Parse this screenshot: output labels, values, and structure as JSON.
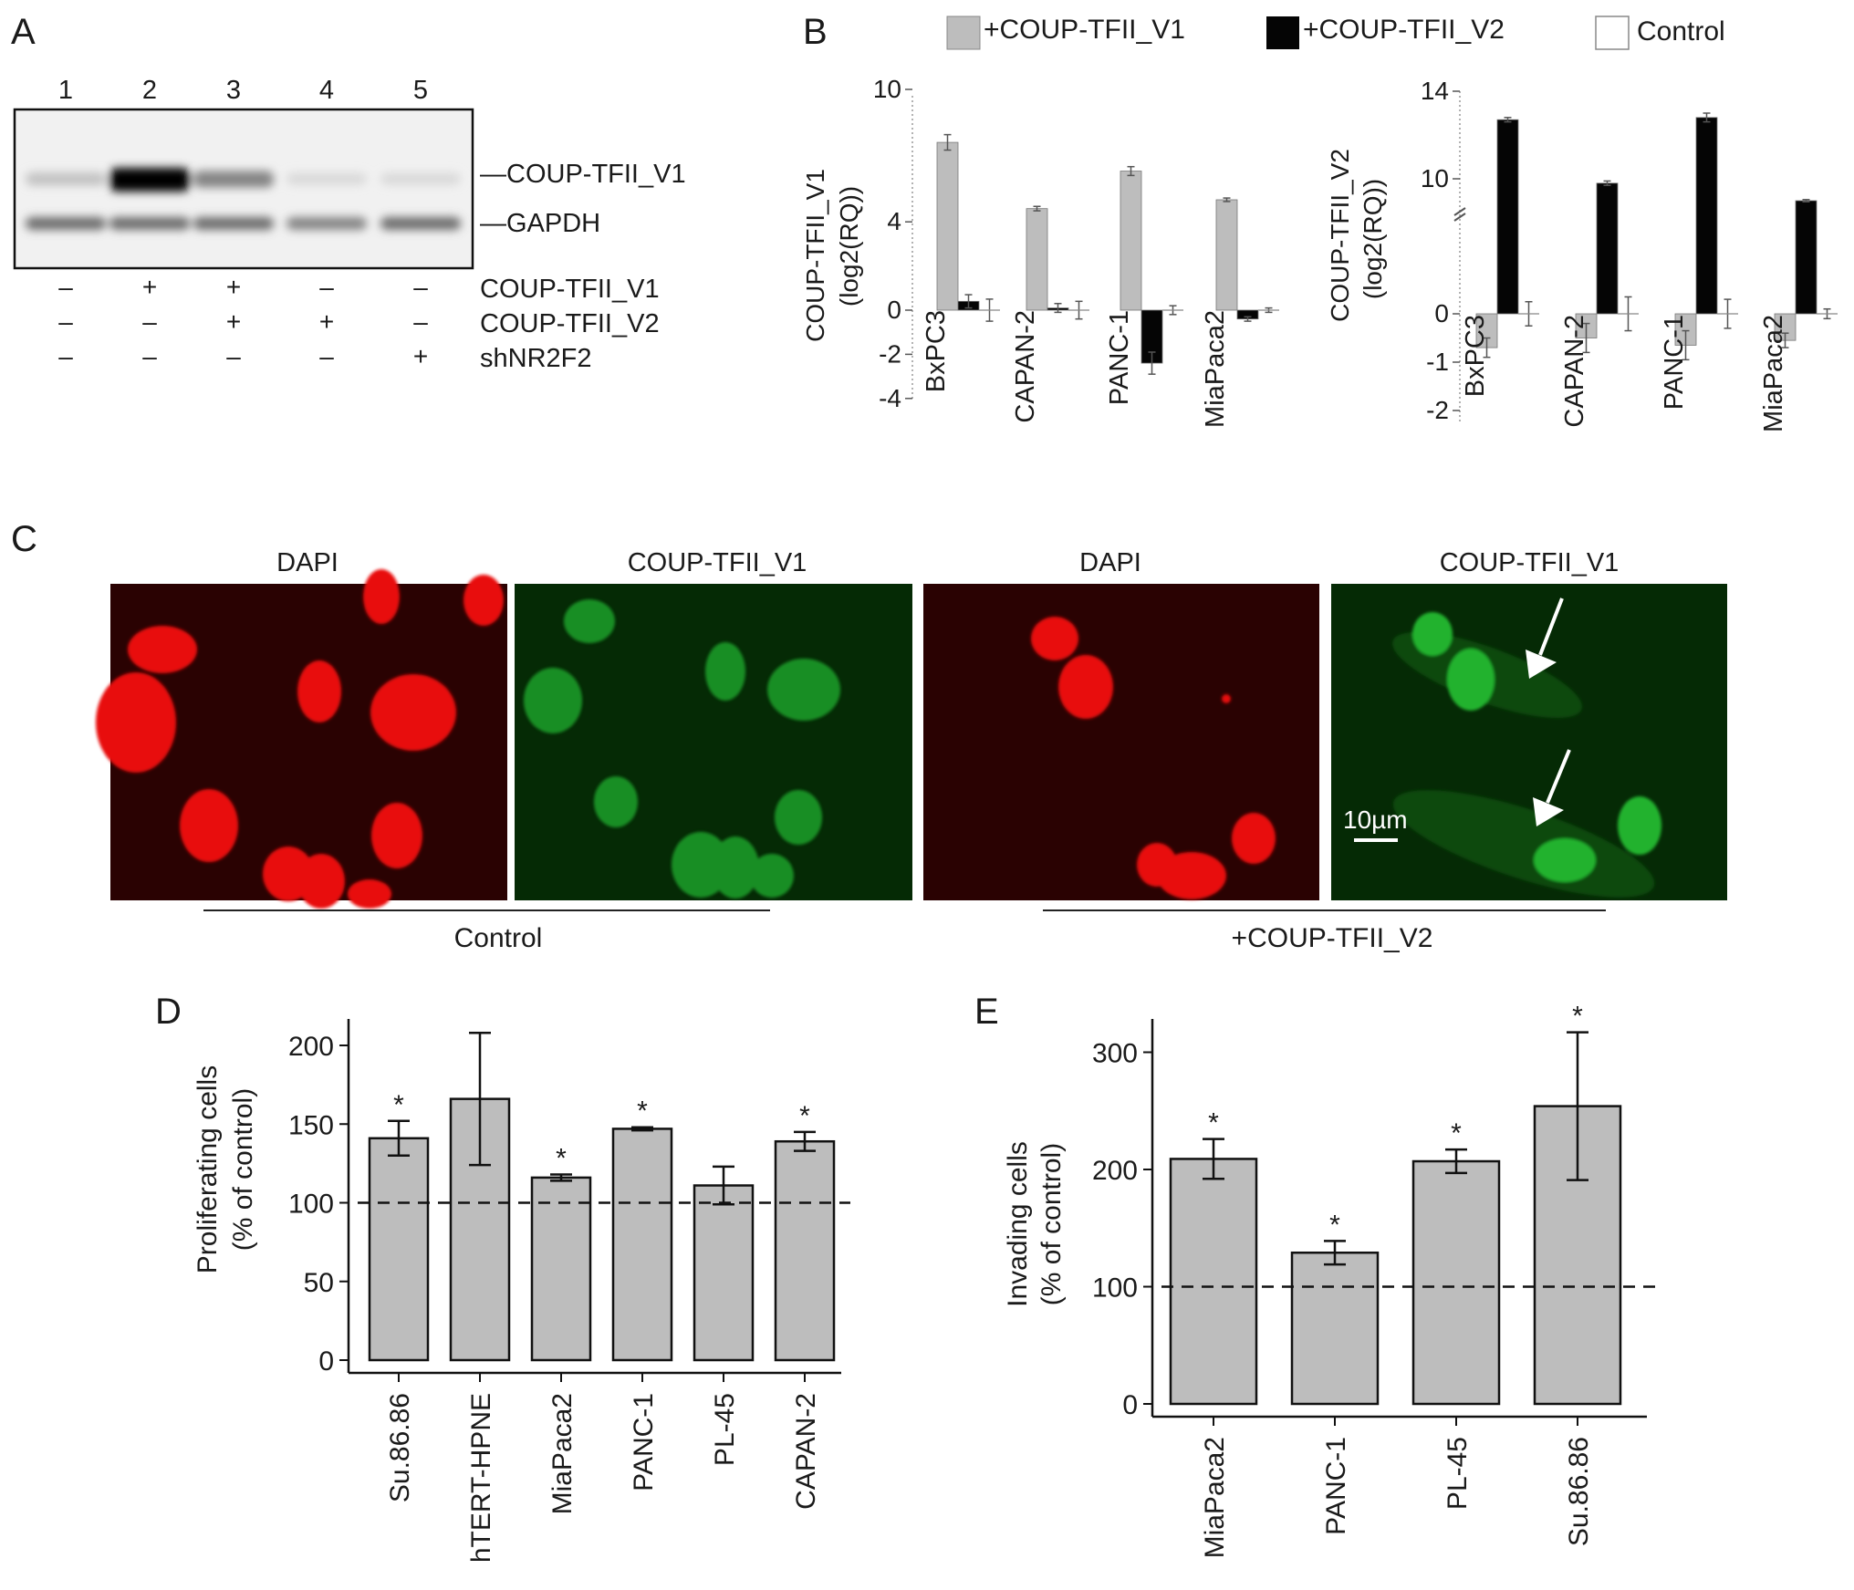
{
  "panel_labels": {
    "a": "A",
    "b": "B",
    "c": "C",
    "d": "D",
    "e": "E"
  },
  "colors": {
    "gray_bar": "#bdbdbd",
    "black_bar": "#050505",
    "dapi": "#e8100d",
    "gfp": "#1aa82a",
    "red_bg": "#2a0202",
    "green_bg": "#052a05"
  },
  "panelA": {
    "lane_numbers": [
      "1",
      "2",
      "3",
      "4",
      "5"
    ],
    "band_labels": [
      "—COUP-TFII_V1",
      "—GAPDH"
    ],
    "conditions": [
      {
        "name": "COUP-TFII_V1",
        "signs": [
          "–",
          "+",
          "+",
          "–",
          "–"
        ]
      },
      {
        "name": "COUP-TFII_V2",
        "signs": [
          "–",
          "–",
          "+",
          "+",
          "–"
        ]
      },
      {
        "name": "shNR2F2",
        "signs": [
          "–",
          "–",
          "–",
          "–",
          "+"
        ]
      }
    ],
    "band_intensity": {
      "coup_v1": [
        0.18,
        1.0,
        0.45,
        0.08,
        0.08
      ],
      "gapdh": [
        0.55,
        0.55,
        0.55,
        0.45,
        0.55
      ]
    }
  },
  "panelB": {
    "legend": [
      "+COUP-TFII_V1",
      "+COUP-TFII_V2",
      "Control"
    ],
    "left_ylabel_1": "COUP-TFII_V1",
    "left_ylabel_2": "(log2(RQ))",
    "right_ylabel_1": "COUP-TFII_V2",
    "right_ylabel_2": "(log2(RQ))"
  },
  "panelC": {
    "headers": [
      "DAPI",
      "COUP-TFII_V1",
      "DAPI",
      "COUP-TFII_V1"
    ],
    "scale_bar": "10µm",
    "group_labels": [
      "Control",
      "+COUP-TFII_V2"
    ]
  },
  "chart_data": [
    {
      "type": "bar",
      "panel": "B-left",
      "categories": [
        "BxPC3",
        "CAPAN-2",
        "PANC-1",
        "MiaPaca2"
      ],
      "ylabel": "COUP-TFII_V1 (log2(RQ))",
      "ylim": [
        -4,
        10
      ],
      "yticks": [
        -4,
        -2,
        0,
        4,
        10
      ],
      "series": [
        {
          "name": "+COUP-TFII_V1",
          "values": [
            7.6,
            4.6,
            6.3,
            5.0
          ],
          "errors": [
            0.35,
            0.1,
            0.2,
            0.08
          ]
        },
        {
          "name": "+COUP-TFII_V2",
          "values": [
            0.4,
            0.1,
            -2.4,
            -0.4
          ],
          "errors": [
            0.3,
            0.2,
            0.5,
            0.1
          ]
        },
        {
          "name": "Control",
          "values": [
            0.0,
            0.0,
            0.0,
            0.0
          ],
          "errors": [
            0.5,
            0.4,
            0.2,
            0.1
          ]
        }
      ]
    },
    {
      "type": "bar",
      "panel": "B-right",
      "categories": [
        "BxPC3",
        "CAPAN-2",
        "PANC-1",
        "MiaPaca2"
      ],
      "ylabel": "COUP-TFII_V2 (log2(RQ))",
      "ylim": [
        -2,
        14
      ],
      "yticks": [
        -2,
        -1,
        0,
        10,
        14
      ],
      "axis_break": true,
      "series": [
        {
          "name": "+COUP-TFII_V1",
          "values": [
            -0.7,
            -0.5,
            -0.65,
            -0.55
          ],
          "errors": [
            0.2,
            0.3,
            0.3,
            0.15
          ]
        },
        {
          "name": "+COUP-TFII_V2",
          "values": [
            12.7,
            9.8,
            12.8,
            9.0
          ],
          "errors": [
            0.1,
            0.1,
            0.2,
            0.05
          ]
        },
        {
          "name": "Control",
          "values": [
            0.0,
            0.0,
            0.0,
            0.0
          ],
          "errors": [
            0.25,
            0.35,
            0.3,
            0.1
          ]
        }
      ]
    },
    {
      "type": "bar",
      "panel": "D",
      "categories": [
        "Su.86.86",
        "hTERT-HPNE",
        "MiaPaca2",
        "PANC-1",
        "PL-45",
        "CAPAN-2"
      ],
      "values": [
        141,
        166,
        116,
        147,
        111,
        139
      ],
      "errors": [
        11,
        42,
        2,
        1,
        12,
        6
      ],
      "significant": [
        true,
        false,
        true,
        true,
        false,
        true
      ],
      "star": "*",
      "ylabel_1": "Proliferating cells",
      "ylabel_2": "(% of control)",
      "ylim": [
        0,
        200
      ],
      "yticks": [
        0,
        50,
        100,
        150,
        200
      ],
      "reference_line": 100
    },
    {
      "type": "bar",
      "panel": "E",
      "categories": [
        "MiaPaca2",
        "PANC-1",
        "PL-45",
        "Su.86.86"
      ],
      "values": [
        209,
        129,
        207,
        254
      ],
      "errors": [
        17,
        10,
        10,
        63
      ],
      "significant": [
        true,
        true,
        true,
        true
      ],
      "star": "*",
      "ylabel_1": "Invading cells",
      "ylabel_2": "(% of control)",
      "ylim": [
        0,
        300
      ],
      "yticks": [
        0,
        100,
        200,
        300
      ],
      "reference_line": 100
    }
  ]
}
